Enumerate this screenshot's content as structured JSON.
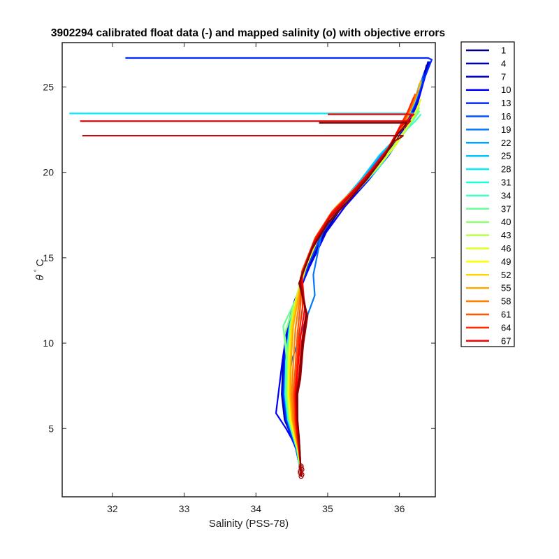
{
  "chart_data": {
    "type": "line",
    "title": "3902294 calibrated float data (-) and mapped salinity (o) with objective errors",
    "xlabel": "Salinity (PSS-78)",
    "ylabel_symbol": "θ",
    "ylabel_unit": "C",
    "xlim": [
      31.3,
      36.5
    ],
    "ylim": [
      1.0,
      27.6
    ],
    "xticks": [
      "32",
      "33",
      "34",
      "35",
      "36"
    ],
    "yticks": [
      "5",
      "10",
      "15",
      "20",
      "25"
    ],
    "grid": false,
    "legend_position": "outside-right",
    "series": [
      {
        "name": "1",
        "color": "#00007f",
        "x": [
          36.38,
          36.3,
          36.22,
          36.05,
          35.8,
          35.52,
          35.2,
          34.96,
          34.74,
          34.56,
          34.47,
          34.4,
          34.38,
          34.42,
          34.5,
          34.56,
          34.6,
          34.63
        ],
        "y": [
          26.3,
          25.0,
          24.0,
          22.5,
          21.0,
          19.5,
          18.0,
          16.5,
          14.5,
          12.5,
          11.0,
          9.0,
          7.0,
          5.5,
          4.5,
          3.8,
          3.0,
          2.3
        ]
      },
      {
        "name": "4",
        "color": "#0000a8",
        "x": [
          36.4,
          36.32,
          36.24,
          36.08,
          35.84,
          35.55,
          35.24,
          34.98,
          34.75,
          34.55,
          34.45,
          34.38,
          34.36,
          34.4,
          34.5,
          34.56,
          34.6,
          34.63
        ],
        "y": [
          26.5,
          25.2,
          24.0,
          22.5,
          21.0,
          19.5,
          18.0,
          16.5,
          14.5,
          12.5,
          11.0,
          9.0,
          7.0,
          5.5,
          4.5,
          3.8,
          3.0,
          2.3
        ]
      },
      {
        "name": "7",
        "color": "#0000d4",
        "x": [
          36.36,
          36.28,
          36.2,
          36.03,
          35.78,
          35.5,
          35.18,
          34.94,
          34.72,
          34.55,
          34.46,
          34.4,
          34.37,
          34.42,
          34.5,
          34.56,
          34.6,
          34.63
        ],
        "y": [
          26.0,
          25.0,
          23.8,
          22.4,
          21.0,
          19.5,
          18.0,
          16.5,
          14.5,
          12.5,
          11.0,
          9.0,
          7.0,
          5.5,
          4.5,
          3.8,
          3.0,
          2.3
        ]
      },
      {
        "name": "10",
        "color": "#0000ff",
        "x": [
          36.42,
          36.33,
          36.25,
          36.08,
          35.85,
          35.56,
          35.24,
          34.98,
          34.75,
          34.54,
          34.44,
          34.37,
          34.28,
          34.42,
          34.5,
          34.56,
          34.6,
          34.63
        ],
        "y": [
          26.5,
          25.2,
          24.0,
          22.5,
          21.0,
          19.5,
          18.0,
          16.5,
          14.5,
          12.5,
          11.0,
          9.0,
          5.9,
          5.0,
          4.4,
          3.8,
          3.0,
          2.3
        ]
      },
      {
        "name": "13",
        "color": "#0028ff",
        "x": [
          32.18,
          36.4,
          36.45,
          36.3,
          36.2,
          36.02,
          35.78,
          35.5,
          35.18,
          34.94,
          34.72,
          34.55,
          34.46,
          34.4,
          34.38,
          34.42,
          34.5,
          34.56,
          34.6,
          34.63
        ],
        "y": [
          26.7,
          26.7,
          26.6,
          25.0,
          23.8,
          22.4,
          21.0,
          19.5,
          18.0,
          16.5,
          14.5,
          12.5,
          11.0,
          9.0,
          7.0,
          5.5,
          4.5,
          3.8,
          3.0,
          2.3
        ]
      },
      {
        "name": "16",
        "color": "#0050ff",
        "x": [
          36.34,
          36.27,
          36.18,
          36.0,
          35.76,
          35.48,
          35.17,
          34.93,
          34.72,
          34.56,
          34.48,
          34.42,
          34.4,
          34.44,
          34.52,
          34.57,
          34.6,
          34.63
        ],
        "y": [
          25.8,
          24.8,
          23.8,
          22.3,
          21.0,
          19.5,
          18.0,
          16.5,
          14.5,
          12.5,
          11.0,
          9.0,
          7.0,
          5.5,
          4.5,
          3.8,
          3.0,
          2.3
        ]
      },
      {
        "name": "19",
        "color": "#0078ff",
        "x": [
          36.32,
          36.25,
          36.15,
          35.98,
          35.74,
          35.46,
          35.15,
          34.92,
          34.8,
          34.82,
          34.62,
          34.5,
          34.44,
          34.46,
          34.52,
          34.57,
          34.6,
          34.63
        ],
        "y": [
          25.5,
          24.5,
          23.5,
          22.2,
          21.0,
          19.5,
          18.0,
          16.5,
          14.0,
          12.8,
          10.5,
          9.0,
          7.0,
          5.5,
          4.5,
          3.8,
          3.0,
          2.3
        ]
      },
      {
        "name": "22",
        "color": "#00a0ff",
        "x": [
          36.3,
          36.24,
          36.14,
          35.97,
          35.73,
          35.45,
          35.14,
          34.9,
          34.7,
          34.56,
          34.47,
          34.42,
          34.4,
          34.44,
          34.52,
          34.57,
          34.6,
          34.63
        ],
        "y": [
          25.3,
          24.4,
          23.4,
          22.1,
          21.0,
          19.5,
          18.0,
          16.5,
          14.5,
          12.5,
          11.0,
          9.0,
          7.0,
          5.5,
          4.5,
          3.8,
          3.0,
          2.3
        ]
      },
      {
        "name": "25",
        "color": "#00c8ff",
        "x": [
          36.28,
          36.22,
          36.12,
          35.95,
          35.72,
          35.45,
          35.14,
          34.9,
          34.7,
          34.56,
          34.47,
          34.42,
          34.41,
          34.45,
          34.52,
          34.57,
          34.6,
          34.63
        ],
        "y": [
          25.2,
          24.3,
          23.3,
          22.0,
          21.0,
          19.5,
          18.0,
          16.5,
          14.5,
          12.5,
          11.0,
          9.0,
          7.0,
          5.5,
          4.5,
          3.8,
          3.0,
          2.3
        ]
      },
      {
        "name": "28",
        "color": "#00f0ff",
        "x": [
          31.4,
          36.2,
          36.18,
          36.08,
          35.93,
          35.7,
          35.43,
          35.12,
          34.89,
          34.69,
          34.55,
          34.47,
          34.42,
          34.41,
          34.45,
          34.52,
          34.57,
          34.6,
          34.63
        ],
        "y": [
          23.45,
          23.45,
          23.0,
          22.4,
          21.5,
          20.2,
          19.0,
          17.8,
          16.5,
          14.5,
          12.5,
          11.0,
          9.0,
          7.0,
          5.5,
          4.5,
          3.8,
          3.0,
          2.3
        ]
      },
      {
        "name": "31",
        "color": "#18ffe0",
        "x": [
          36.26,
          36.2,
          36.1,
          35.93,
          35.7,
          35.43,
          35.12,
          34.89,
          34.69,
          34.55,
          34.47,
          34.42,
          34.41,
          34.45,
          34.52,
          34.57,
          34.6,
          34.63
        ],
        "y": [
          24.8,
          24.0,
          23.2,
          21.9,
          20.6,
          19.3,
          18.0,
          16.5,
          14.5,
          12.5,
          11.0,
          9.0,
          7.0,
          5.5,
          4.5,
          3.8,
          3.0,
          2.3
        ]
      },
      {
        "name": "34",
        "color": "#40ffbf",
        "x": [
          36.3,
          36.22,
          36.12,
          35.95,
          35.72,
          35.45,
          35.14,
          34.9,
          34.7,
          34.56,
          34.48,
          34.43,
          34.42,
          34.46,
          34.53,
          34.58,
          34.61,
          34.63
        ],
        "y": [
          23.4,
          23.0,
          22.6,
          21.7,
          20.5,
          19.2,
          18.0,
          16.5,
          14.5,
          12.5,
          11.0,
          9.0,
          7.0,
          5.5,
          4.5,
          3.8,
          3.0,
          2.3
        ]
      },
      {
        "name": "37",
        "color": "#68ff98",
        "x": [
          36.28,
          36.2,
          36.1,
          35.93,
          35.7,
          35.43,
          35.12,
          34.89,
          34.69,
          34.55,
          34.38,
          34.43,
          34.42,
          34.46,
          34.53,
          34.58,
          34.61,
          34.63
        ],
        "y": [
          23.6,
          23.1,
          22.6,
          21.6,
          20.4,
          19.1,
          18.0,
          16.5,
          14.5,
          12.5,
          11.0,
          9.0,
          7.0,
          5.5,
          4.5,
          3.8,
          3.0,
          2.3
        ]
      },
      {
        "name": "40",
        "color": "#90ff70",
        "x": [
          36.28,
          36.2,
          36.1,
          35.93,
          35.7,
          35.43,
          35.12,
          34.89,
          34.69,
          34.55,
          34.4,
          34.45,
          34.44,
          34.47,
          34.53,
          34.58,
          34.61,
          34.63
        ],
        "y": [
          23.8,
          23.2,
          22.6,
          21.6,
          20.4,
          19.1,
          18.0,
          16.5,
          14.5,
          12.5,
          10.5,
          9.0,
          7.0,
          5.5,
          4.5,
          3.8,
          3.0,
          2.3
        ]
      },
      {
        "name": "43",
        "color": "#b8ff48",
        "x": [
          36.28,
          36.2,
          36.1,
          35.93,
          35.7,
          35.43,
          35.12,
          34.89,
          34.69,
          34.55,
          34.48,
          34.45,
          34.44,
          34.47,
          34.53,
          34.58,
          34.61,
          34.63
        ],
        "y": [
          24.0,
          23.3,
          22.6,
          21.6,
          20.4,
          19.1,
          18.0,
          16.5,
          14.5,
          12.5,
          11.0,
          9.0,
          7.0,
          5.5,
          4.5,
          3.8,
          3.0,
          2.3
        ]
      },
      {
        "name": "46",
        "color": "#e0ff20",
        "x": [
          36.3,
          36.22,
          36.12,
          35.95,
          35.72,
          35.45,
          35.14,
          34.9,
          34.7,
          34.56,
          34.49,
          34.46,
          34.45,
          34.48,
          34.54,
          34.58,
          34.61,
          34.63
        ],
        "y": [
          24.3,
          23.5,
          22.7,
          21.6,
          20.4,
          19.1,
          18.0,
          16.5,
          14.5,
          12.5,
          11.0,
          9.0,
          7.0,
          5.5,
          4.5,
          3.8,
          3.0,
          2.3
        ]
      },
      {
        "name": "49",
        "color": "#ffff00",
        "x": [
          36.3,
          36.22,
          36.12,
          35.94,
          35.71,
          35.44,
          35.13,
          34.9,
          34.7,
          34.56,
          34.5,
          34.47,
          34.46,
          34.49,
          34.54,
          34.58,
          34.61,
          34.63
        ],
        "y": [
          25.3,
          24.3,
          23.3,
          21.9,
          20.6,
          19.3,
          18.0,
          16.5,
          14.5,
          12.5,
          11.0,
          9.0,
          7.0,
          5.5,
          4.5,
          3.8,
          3.0,
          2.3
        ]
      },
      {
        "name": "52",
        "color": "#ffd400",
        "x": [
          36.28,
          36.2,
          36.1,
          35.92,
          35.69,
          35.42,
          35.11,
          34.88,
          34.68,
          34.56,
          34.5,
          34.48,
          34.47,
          34.5,
          34.55,
          34.59,
          34.62,
          34.63
        ],
        "y": [
          25.0,
          24.1,
          23.2,
          21.8,
          20.5,
          19.2,
          17.9,
          16.4,
          14.4,
          12.4,
          11.0,
          9.0,
          7.0,
          5.5,
          4.5,
          3.8,
          3.0,
          2.3
        ]
      },
      {
        "name": "55",
        "color": "#ffaa00",
        "x": [
          36.3,
          36.22,
          36.1,
          35.92,
          35.68,
          35.41,
          35.1,
          34.87,
          34.67,
          34.58,
          34.52,
          34.49,
          34.48,
          34.51,
          34.56,
          34.59,
          34.62,
          34.63
        ],
        "y": [
          25.4,
          24.3,
          23.2,
          21.8,
          20.5,
          19.2,
          17.9,
          16.4,
          14.4,
          12.4,
          11.0,
          9.0,
          7.0,
          5.5,
          4.5,
          3.8,
          3.0,
          2.3
        ]
      },
      {
        "name": "58",
        "color": "#ff8000",
        "x": [
          36.26,
          36.18,
          36.08,
          35.9,
          35.66,
          35.39,
          35.08,
          34.85,
          34.66,
          34.6,
          34.55,
          34.52,
          34.5,
          34.52,
          34.56,
          34.59,
          34.62,
          34.63
        ],
        "y": [
          24.8,
          23.9,
          23.0,
          21.7,
          20.4,
          19.1,
          17.8,
          16.3,
          14.3,
          12.3,
          10.8,
          8.8,
          7.0,
          5.5,
          4.5,
          3.8,
          3.0,
          2.3
        ]
      },
      {
        "name": "61",
        "color": "#ff5500",
        "x": [
          36.22,
          36.15,
          36.05,
          35.88,
          35.64,
          35.37,
          35.06,
          34.83,
          34.64,
          34.62,
          34.58,
          34.55,
          34.52,
          34.54,
          34.57,
          34.6,
          34.62,
          34.63
        ],
        "y": [
          24.6,
          23.8,
          22.9,
          21.6,
          20.3,
          19.0,
          17.7,
          16.2,
          14.2,
          12.2,
          10.6,
          8.6,
          7.0,
          5.5,
          4.5,
          3.8,
          3.0,
          2.3
        ]
      },
      {
        "name": "64",
        "color": "#ff2a00",
        "x": [
          36.2,
          36.12,
          36.02,
          35.86,
          35.62,
          35.35,
          35.05,
          34.82,
          34.64,
          34.65,
          34.6,
          34.57,
          34.54,
          34.55,
          34.58,
          34.6,
          34.62,
          34.63
        ],
        "y": [
          24.4,
          23.6,
          22.8,
          21.5,
          20.2,
          18.9,
          17.6,
          16.1,
          14.1,
          12.1,
          10.5,
          8.5,
          7.0,
          5.5,
          4.5,
          3.8,
          3.0,
          2.3
        ]
      },
      {
        "name": "67",
        "color": "#ff0000",
        "x": [
          35.0,
          36.2,
          36.12,
          36.0,
          35.84,
          35.6,
          35.33,
          35.04,
          34.82,
          34.64,
          34.68,
          34.62,
          34.58,
          34.55,
          34.56,
          34.58,
          34.6,
          34.62,
          34.63
        ],
        "y": [
          23.4,
          23.4,
          23.1,
          22.6,
          21.4,
          20.1,
          18.8,
          17.5,
          16.0,
          14.0,
          12.0,
          10.3,
          8.3,
          7.0,
          5.5,
          4.5,
          3.8,
          3.0,
          2.3
        ]
      },
      {
        "name": "",
        "color": "#d40000",
        "x": [
          31.55,
          36.15,
          36.08,
          35.98,
          35.82,
          35.58,
          35.31,
          35.02,
          34.8,
          34.62,
          34.7,
          34.64,
          34.6,
          34.56,
          34.57,
          34.59,
          34.61,
          34.62,
          34.63
        ],
        "y": [
          23.0,
          23.0,
          22.7,
          22.3,
          21.2,
          19.9,
          18.6,
          17.3,
          15.8,
          13.8,
          11.8,
          10.1,
          8.1,
          7.0,
          5.5,
          4.5,
          3.8,
          3.0,
          2.2
        ]
      },
      {
        "name": "",
        "color": "#a80000",
        "x": [
          31.58,
          36.05,
          36.0,
          35.92,
          35.78,
          35.55,
          35.28,
          35.0,
          34.78,
          34.6,
          34.72,
          34.66,
          34.62,
          34.58,
          34.58,
          34.6,
          34.61,
          34.62,
          34.63
        ],
        "y": [
          22.15,
          22.15,
          22.0,
          21.8,
          20.9,
          19.6,
          18.3,
          17.0,
          15.5,
          13.5,
          11.6,
          9.9,
          7.9,
          7.0,
          5.5,
          4.5,
          3.8,
          3.0,
          2.2
        ]
      },
      {
        "name": "",
        "color": "#800000",
        "x": [
          34.88,
          36.1,
          36.05,
          35.95,
          35.8,
          35.56,
          35.3,
          35.01,
          34.79,
          34.61,
          34.7,
          34.65,
          34.61,
          34.57,
          34.58,
          34.6,
          34.61,
          34.62,
          34.63
        ],
        "y": [
          22.9,
          22.9,
          22.6,
          22.1,
          21.0,
          19.7,
          18.4,
          17.1,
          15.6,
          13.6,
          11.7,
          10.0,
          8.0,
          7.0,
          5.5,
          4.5,
          3.8,
          3.0,
          2.2
        ]
      }
    ],
    "mapped_points": {
      "color": "#a80000",
      "x": [
        34.63,
        34.62,
        34.64,
        34.63,
        34.62,
        34.64,
        34.63
      ],
      "y": [
        2.2,
        2.4,
        2.6,
        2.8,
        2.5,
        2.3,
        2.7
      ]
    }
  }
}
